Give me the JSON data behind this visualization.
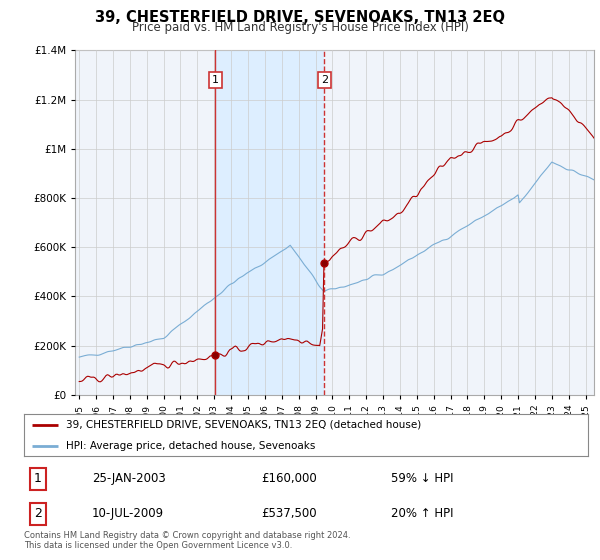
{
  "title": "39, CHESTERFIELD DRIVE, SEVENOAKS, TN13 2EQ",
  "subtitle": "Price paid vs. HM Land Registry's House Price Index (HPI)",
  "legend_line1": "39, CHESTERFIELD DRIVE, SEVENOAKS, TN13 2EQ (detached house)",
  "legend_line2": "HPI: Average price, detached house, Sevenoaks",
  "transaction1_label": "1",
  "transaction1_date": "25-JAN-2003",
  "transaction1_price": "£160,000",
  "transaction1_hpi": "59% ↓ HPI",
  "transaction1_year": 2003.07,
  "transaction1_value": 160000,
  "transaction2_label": "2",
  "transaction2_date": "10-JUL-2009",
  "transaction2_price": "£537,500",
  "transaction2_hpi": "20% ↑ HPI",
  "transaction2_year": 2009.53,
  "transaction2_value": 537500,
  "footnote": "Contains HM Land Registry data © Crown copyright and database right 2024.\nThis data is licensed under the Open Government Licence v3.0.",
  "red_color": "#aa0000",
  "blue_color": "#7aadd4",
  "vline1_color": "#cc3333",
  "vline2_color": "#cc3333",
  "highlight_color": "#ddeeff",
  "background_color": "#ffffff",
  "chart_bg_color": "#f0f4fa",
  "grid_color": "#cccccc",
  "ylim": [
    0,
    1400000
  ],
  "ytick_max": 1400000,
  "xlim_start": 1994.75,
  "xlim_end": 2025.5
}
